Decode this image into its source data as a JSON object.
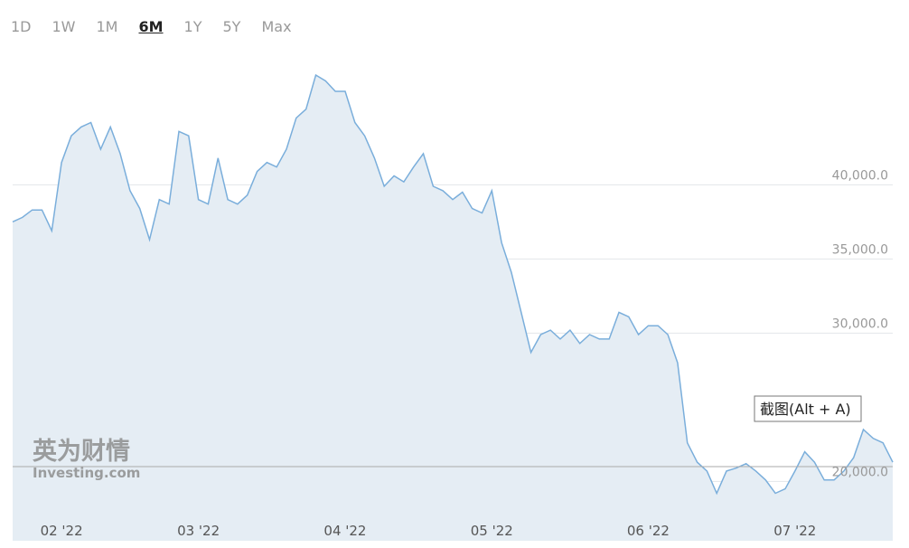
{
  "range_buttons": [
    {
      "label": "1D",
      "active": false
    },
    {
      "label": "1W",
      "active": false
    },
    {
      "label": "1M",
      "active": false
    },
    {
      "label": "6M",
      "active": true
    },
    {
      "label": "1Y",
      "active": false
    },
    {
      "label": "5Y",
      "active": false
    },
    {
      "label": "Max",
      "active": false
    }
  ],
  "overlay_tooltip": "截图(Alt + A)",
  "chart_data": {
    "type": "area",
    "watermark": {
      "brand": "英为财情",
      "site": "Investing.com"
    },
    "categories": [
      null,
      null,
      null,
      null,
      null,
      "02 '22",
      null,
      null,
      null,
      null,
      null,
      null,
      null,
      null,
      null,
      null,
      null,
      null,
      null,
      "03 '22",
      null,
      null,
      null,
      null,
      null,
      null,
      null,
      null,
      null,
      null,
      null,
      null,
      null,
      null,
      "04 '22",
      null,
      null,
      null,
      null,
      null,
      null,
      null,
      null,
      null,
      null,
      null,
      null,
      null,
      null,
      "05 '22",
      null,
      null,
      null,
      null,
      null,
      null,
      null,
      null,
      null,
      null,
      null,
      null,
      null,
      null,
      null,
      "06 '22",
      null,
      null,
      null,
      null,
      null,
      null,
      null,
      null,
      null,
      null,
      null,
      null,
      null,
      null,
      "07 '22",
      null,
      null,
      null,
      null,
      null,
      null,
      null,
      null,
      null,
      null
    ],
    "values": [
      37500,
      37800,
      38300,
      38300,
      36900,
      41500,
      43300,
      43900,
      44200,
      42400,
      43900,
      42100,
      39600,
      38400,
      36300,
      39000,
      38700,
      43600,
      43300,
      39000,
      38700,
      41800,
      39000,
      38700,
      39300,
      40900,
      41500,
      41200,
      42400,
      44500,
      45100,
      47400,
      47000,
      46300,
      46300,
      44200,
      43300,
      41800,
      39900,
      40600,
      40200,
      41200,
      42100,
      39900,
      39600,
      39000,
      39500,
      38400,
      38100,
      39600,
      36100,
      34100,
      31400,
      28700,
      29900,
      30200,
      29600,
      30200,
      29300,
      29900,
      29600,
      29600,
      31400,
      31100,
      29900,
      30500,
      30500,
      29900,
      28000,
      22600,
      21300,
      20700,
      19200,
      20700,
      20900,
      21200,
      20700,
      20100,
      19200,
      19500,
      20700,
      22000,
      21300,
      20100,
      20100,
      20700,
      21600,
      23500,
      22900,
      22600,
      21300
    ],
    "color": "#7aaedb",
    "fill": "#e5edf4",
    "last_price": 21000,
    "ylim": [
      16000,
      48800
    ],
    "yticks": [
      {
        "value": 20000,
        "label": "20,000.0"
      },
      {
        "value": 30000,
        "label": "30,000.0"
      },
      {
        "value": 35000,
        "label": "35,000.0"
      },
      {
        "value": 40000,
        "label": "40,000.0"
      }
    ],
    "grid": true
  }
}
